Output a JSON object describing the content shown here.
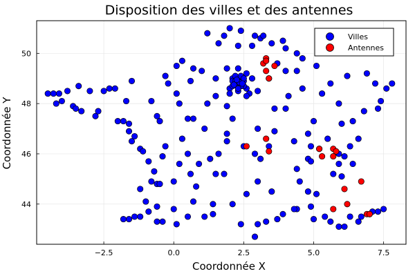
{
  "chart_data": {
    "type": "scatter",
    "title": "Disposition des villes et des antennes",
    "xlabel": "Coordonnée X",
    "ylabel": "Coordonnée Y",
    "xlim": [
      -4.9,
      8.3
    ],
    "ylim": [
      42.4,
      51.3
    ],
    "xticks": [
      -2.5,
      0.0,
      2.5,
      5.0,
      7.5
    ],
    "xtick_labels": [
      "−2.5",
      "0.0",
      "2.5",
      "5.0",
      "7.5"
    ],
    "yticks": [
      44,
      46,
      48,
      50
    ],
    "ytick_labels": [
      "44",
      "46",
      "48",
      "50"
    ],
    "grid": true,
    "legend_position": "top-right",
    "series": [
      {
        "name": "Villes",
        "color": "#0000ff",
        "points": [
          [
            -4.5,
            48.4
          ],
          [
            -4.3,
            48.4
          ],
          [
            -4.1,
            48.4
          ],
          [
            -4.0,
            48.1
          ],
          [
            -3.8,
            48.5
          ],
          [
            -3.6,
            47.9
          ],
          [
            -3.4,
            48.7
          ],
          [
            -3.3,
            47.7
          ],
          [
            -3.0,
            48.5
          ],
          [
            -2.8,
            47.5
          ],
          [
            -2.5,
            48.5
          ],
          [
            -2.3,
            48.6
          ],
          [
            -2.1,
            48.6
          ],
          [
            -2.0,
            47.3
          ],
          [
            -1.8,
            47.3
          ],
          [
            -1.7,
            48.1
          ],
          [
            -1.6,
            46.9
          ],
          [
            -1.4,
            46.7
          ],
          [
            -1.2,
            46.2
          ],
          [
            -1.5,
            48.9
          ],
          [
            -1.1,
            46.1
          ],
          [
            -0.9,
            45.7
          ],
          [
            -0.6,
            44.8
          ],
          [
            -0.8,
            44.9
          ],
          [
            -0.6,
            47.5
          ],
          [
            -0.5,
            47.3
          ],
          [
            -0.3,
            49.1
          ],
          [
            0.1,
            49.5
          ],
          [
            0.3,
            49.7
          ],
          [
            0.7,
            49.4
          ],
          [
            0.2,
            48.0
          ],
          [
            0.5,
            47.4
          ],
          [
            0.7,
            47.4
          ],
          [
            0.3,
            46.6
          ],
          [
            1.1,
            47.0
          ],
          [
            1.3,
            45.8
          ],
          [
            1.4,
            44.0
          ],
          [
            1.4,
            43.6
          ],
          [
            1.1,
            43.5
          ],
          [
            0.5,
            43.5
          ],
          [
            0.1,
            43.2
          ],
          [
            -0.4,
            43.3
          ],
          [
            -0.6,
            43.3
          ],
          [
            -0.9,
            43.7
          ],
          [
            -1.2,
            44.6
          ],
          [
            -1.2,
            43.5
          ],
          [
            -1.4,
            43.5
          ],
          [
            -1.6,
            43.4
          ],
          [
            -1.8,
            43.4
          ],
          [
            -0.4,
            45.9
          ],
          [
            0.2,
            45.6
          ],
          [
            0.6,
            45.2
          ],
          [
            0.8,
            44.7
          ],
          [
            1.5,
            45.2
          ],
          [
            1.9,
            46.8
          ],
          [
            2.1,
            47.4
          ],
          [
            1.9,
            47.9
          ],
          [
            2.3,
            48.9
          ],
          [
            2.4,
            48.8
          ],
          [
            2.2,
            48.8
          ],
          [
            2.5,
            48.9
          ],
          [
            2.6,
            48.6
          ],
          [
            2.0,
            48.6
          ],
          [
            2.1,
            49.0
          ],
          [
            2.3,
            49.4
          ],
          [
            2.8,
            50.3
          ],
          [
            3.1,
            50.6
          ],
          [
            3.2,
            50.7
          ],
          [
            2.4,
            50.9
          ],
          [
            2.9,
            50.7
          ],
          [
            1.8,
            50.7
          ],
          [
            1.6,
            50.4
          ],
          [
            2.3,
            50.3
          ],
          [
            3.5,
            50.4
          ],
          [
            4.0,
            50.2
          ],
          [
            4.6,
            49.8
          ],
          [
            4.4,
            49.3
          ],
          [
            4.0,
            49.3
          ],
          [
            5.1,
            49.5
          ],
          [
            6.2,
            49.1
          ],
          [
            6.9,
            49.2
          ],
          [
            7.2,
            48.8
          ],
          [
            7.6,
            48.6
          ],
          [
            7.8,
            48.8
          ],
          [
            7.4,
            48.1
          ],
          [
            6.8,
            47.7
          ],
          [
            7.3,
            47.8
          ],
          [
            6.4,
            47.3
          ],
          [
            6.0,
            47.2
          ],
          [
            5.0,
            47.3
          ],
          [
            4.8,
            46.8
          ],
          [
            4.9,
            46.3
          ],
          [
            5.2,
            46.2
          ],
          [
            5.9,
            46.0
          ],
          [
            6.1,
            45.9
          ],
          [
            6.4,
            45.6
          ],
          [
            5.9,
            45.6
          ],
          [
            5.7,
            45.2
          ],
          [
            4.8,
            45.8
          ],
          [
            4.9,
            45.7
          ],
          [
            4.4,
            45.4
          ],
          [
            4.5,
            44.9
          ],
          [
            4.8,
            44.5
          ],
          [
            4.9,
            43.9
          ],
          [
            5.4,
            43.5
          ],
          [
            5.9,
            43.1
          ],
          [
            6.1,
            43.1
          ],
          [
            6.6,
            43.3
          ],
          [
            7.0,
            43.6
          ],
          [
            7.3,
            43.7
          ],
          [
            4.4,
            43.8
          ],
          [
            3.9,
            43.6
          ],
          [
            3.3,
            43.3
          ],
          [
            3.0,
            43.2
          ],
          [
            2.9,
            42.7
          ],
          [
            2.4,
            43.2
          ],
          [
            2.1,
            44.0
          ],
          [
            2.6,
            44.4
          ],
          [
            3.1,
            45.8
          ],
          [
            3.4,
            46.3
          ],
          [
            2.9,
            46.0
          ],
          [
            2.5,
            46.3
          ],
          [
            3.6,
            46.9
          ],
          [
            4.0,
            47.8
          ],
          [
            3.6,
            47.8
          ],
          [
            4.1,
            48.3
          ],
          [
            4.6,
            48.6
          ],
          [
            5.3,
            48.4
          ],
          [
            5.6,
            48.8
          ],
          [
            5.9,
            48.0
          ],
          [
            0.7,
            44.1
          ],
          [
            0.0,
            44.9
          ],
          [
            -0.5,
            44.8
          ],
          [
            1.6,
            46.0
          ],
          [
            3.0,
            44.9
          ],
          [
            3.5,
            44.5
          ],
          [
            -1.6,
            47.2
          ],
          [
            -2.7,
            47.7
          ],
          [
            -3.5,
            47.8
          ],
          [
            -4.2,
            48.0
          ],
          [
            -1.5,
            46.5
          ],
          [
            -0.3,
            46.3
          ],
          [
            0.9,
            45.6
          ],
          [
            1.8,
            45.2
          ],
          [
            4.3,
            46.5
          ],
          [
            5.5,
            46.6
          ],
          [
            6.6,
            46.6
          ],
          [
            6.3,
            46.3
          ],
          [
            6.0,
            45.1
          ],
          [
            5.1,
            44.4
          ],
          [
            3.7,
            43.4
          ],
          [
            4.3,
            43.8
          ],
          [
            5.0,
            43.4
          ],
          [
            5.6,
            43.3
          ],
          [
            6.3,
            43.5
          ],
          [
            6.7,
            43.5
          ],
          [
            7.1,
            43.7
          ],
          [
            7.5,
            43.8
          ],
          [
            2.8,
            49.0
          ],
          [
            3.0,
            48.5
          ],
          [
            2.7,
            48.4
          ],
          [
            1.5,
            48.3
          ],
          [
            1.2,
            48.0
          ],
          [
            0.1,
            48.4
          ],
          [
            -0.8,
            48.1
          ],
          [
            -0.2,
            48.8
          ],
          [
            0.6,
            48.9
          ],
          [
            1.0,
            49.3
          ],
          [
            1.5,
            49.0
          ],
          [
            1.9,
            49.4
          ],
          [
            2.1,
            48.9
          ],
          [
            2.2,
            49.1
          ],
          [
            2.4,
            49.1
          ],
          [
            2.5,
            48.7
          ],
          [
            2.3,
            48.5
          ],
          [
            2.0,
            48.4
          ],
          [
            2.6,
            48.3
          ],
          [
            3.4,
            49.0
          ],
          [
            3.7,
            49.6
          ],
          [
            4.4,
            50.0
          ],
          [
            3.9,
            50.5
          ],
          [
            2.0,
            51.0
          ],
          [
            1.2,
            50.8
          ],
          [
            3.0,
            47.0
          ],
          [
            1.9,
            46.5
          ],
          [
            0.5,
            46.0
          ],
          [
            -0.7,
            45.3
          ],
          [
            -1.0,
            44.1
          ],
          [
            -0.6,
            43.9
          ],
          [
            0.0,
            43.8
          ],
          [
            2.4,
            48.7
          ],
          [
            2.3,
            48.6
          ],
          [
            2.1,
            48.7
          ],
          [
            2.5,
            49.0
          ],
          [
            2.6,
            49.2
          ],
          [
            2.2,
            48.9
          ],
          [
            2.35,
            48.85
          ],
          [
            2.45,
            48.8
          ],
          [
            2.15,
            48.75
          ],
          [
            2.25,
            48.95
          ]
        ]
      },
      {
        "name": "Antennes",
        "color": "#ff0000",
        "points": [
          [
            3.3,
            49.8
          ],
          [
            3.2,
            49.6
          ],
          [
            3.3,
            49.7
          ],
          [
            3.6,
            49.5
          ],
          [
            3.3,
            49.3
          ],
          [
            3.4,
            49.0
          ],
          [
            2.6,
            46.3
          ],
          [
            3.3,
            46.6
          ],
          [
            3.4,
            46.1
          ],
          [
            5.2,
            46.2
          ],
          [
            5.3,
            45.9
          ],
          [
            5.7,
            46.2
          ],
          [
            5.8,
            46.1
          ],
          [
            5.7,
            45.9
          ],
          [
            6.7,
            44.9
          ],
          [
            6.1,
            44.6
          ],
          [
            6.2,
            44.0
          ],
          [
            5.7,
            43.8
          ],
          [
            6.9,
            43.6
          ],
          [
            7.0,
            43.6
          ]
        ]
      }
    ]
  }
}
